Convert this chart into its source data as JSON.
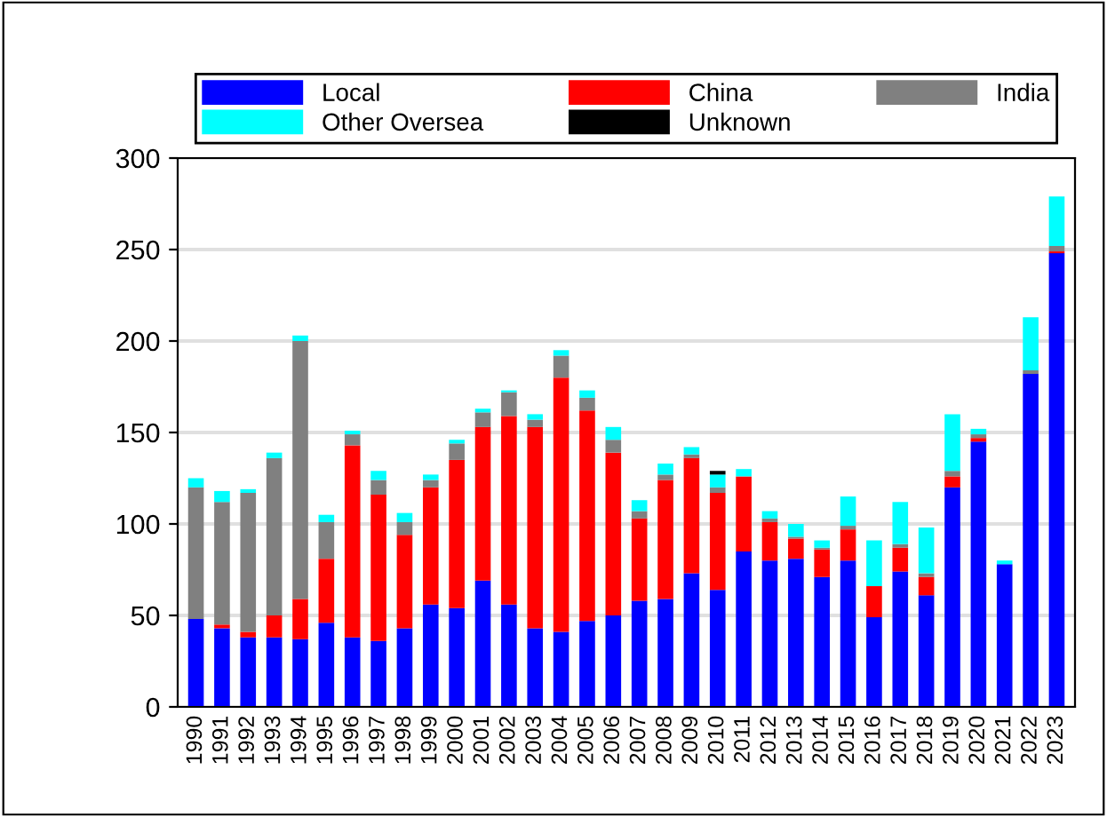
{
  "chart_data": {
    "type": "bar",
    "stacked": true,
    "legend": "top",
    "grid": "y",
    "categories": [
      "1990",
      "1991",
      "1992",
      "1993",
      "1994",
      "1995",
      "1996",
      "1997",
      "1998",
      "1999",
      "2000",
      "2001",
      "2002",
      "2003",
      "2004",
      "2005",
      "2006",
      "2007",
      "2008",
      "2009",
      "2010",
      "2011",
      "2012",
      "2013",
      "2014",
      "2015",
      "2016",
      "2017",
      "2018",
      "2019",
      "2020",
      "2021",
      "2022",
      "2023"
    ],
    "ylim": [
      0,
      300
    ],
    "yticks": [
      0,
      50,
      100,
      150,
      200,
      250,
      300
    ],
    "series": [
      {
        "name": "Local",
        "color": "#0000ff",
        "values": [
          48,
          43,
          38,
          38,
          37,
          46,
          38,
          36,
          43,
          56,
          54,
          69,
          56,
          43,
          41,
          47,
          50,
          58,
          59,
          73,
          64,
          85,
          80,
          81,
          71,
          80,
          49,
          74,
          61,
          120,
          145,
          78,
          182,
          248
        ]
      },
      {
        "name": "China",
        "color": "#ff0000",
        "values": [
          0,
          2,
          3,
          12,
          22,
          35,
          105,
          80,
          51,
          64,
          81,
          84,
          103,
          110,
          139,
          115,
          89,
          45,
          65,
          63,
          53,
          41,
          21,
          11,
          15,
          17,
          17,
          13,
          10,
          6,
          2,
          0,
          0,
          1
        ]
      },
      {
        "name": "India",
        "color": "#808080",
        "values": [
          72,
          67,
          76,
          86,
          141,
          20,
          6,
          8,
          7,
          4,
          9,
          8,
          13,
          4,
          12,
          7,
          7,
          4,
          3,
          2,
          3,
          0,
          2,
          1,
          1,
          2,
          0,
          2,
          2,
          3,
          2,
          0,
          2,
          3
        ]
      },
      {
        "name": "Other Oversea",
        "color": "#00ffff",
        "values": [
          5,
          6,
          2,
          3,
          3,
          4,
          2,
          5,
          5,
          3,
          2,
          2,
          1,
          3,
          3,
          4,
          7,
          6,
          6,
          4,
          7,
          4,
          4,
          7,
          4,
          16,
          25,
          23,
          25,
          31,
          3,
          2,
          29,
          27
        ]
      },
      {
        "name": "Unknown",
        "color": "#000000",
        "values": [
          0,
          0,
          0,
          0,
          0,
          0,
          0,
          0,
          0,
          0,
          0,
          0,
          0,
          0,
          0,
          0,
          0,
          0,
          0,
          0,
          2,
          0,
          0,
          0,
          0,
          0,
          0,
          0,
          0,
          0,
          0,
          0,
          0,
          0
        ]
      }
    ]
  }
}
